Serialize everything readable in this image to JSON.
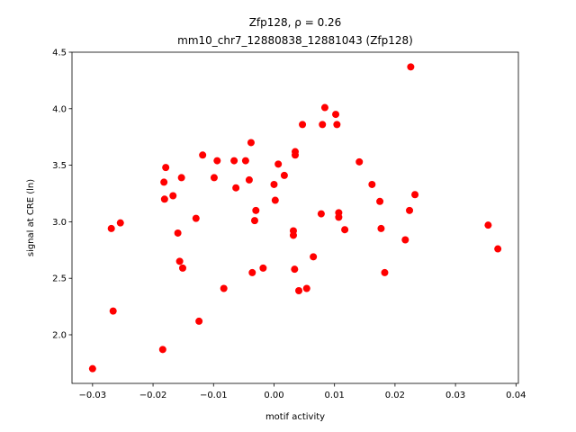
{
  "chart_data": {
    "type": "scatter",
    "title": "Zfp128, ρ = 0.26",
    "subtitle": "mm10_chr7_12880838_12881043 (Zfp128)",
    "x_label": "motif activity",
    "y_label": "signal at CRE (ln)",
    "color": "#ff0000",
    "xlim": [
      -0.0334,
      0.0404
    ],
    "ylim": [
      1.57,
      4.5
    ],
    "xticks": [
      {
        "value": -0.03,
        "label": "−0.03"
      },
      {
        "value": -0.02,
        "label": "−0.02"
      },
      {
        "value": -0.01,
        "label": "−0.01"
      },
      {
        "value": 0,
        "label": "0.00"
      },
      0.01,
      0.02,
      0.03,
      0.04
    ],
    "yticks": [
      {
        "value": 2,
        "label": "2.0"
      },
      2.5,
      {
        "value": 3,
        "label": "3.0"
      },
      3.5,
      {
        "value": 4,
        "label": "4.0"
      },
      4.5
    ],
    "x": [
      -0.03,
      -0.0269,
      -0.0254,
      -0.0266,
      -0.0184,
      -0.0179,
      -0.0182,
      -0.0181,
      -0.0167,
      -0.0159,
      -0.0156,
      -0.0151,
      -0.0153,
      -0.0129,
      -0.0124,
      -0.0118,
      -0.0099,
      -0.0094,
      -0.0083,
      -0.0066,
      -0.0063,
      -0.0047,
      -0.0041,
      -0.0038,
      -0.0036,
      -0.003,
      -0.0032,
      -0.0018,
      0.0,
      0.0002,
      0.0007,
      0.0017,
      0.0032,
      0.0032,
      0.0035,
      0.0035,
      0.0034,
      0.0041,
      0.0047,
      0.0054,
      0.0065,
      0.0078,
      0.008,
      0.0084,
      0.0102,
      0.0104,
      0.0107,
      0.0107,
      0.0117,
      0.0141,
      0.0162,
      0.0175,
      0.0177,
      0.0183,
      0.0217,
      0.0226,
      0.0224,
      0.0233,
      0.0354,
      0.037
    ],
    "values": [
      1.7,
      2.94,
      2.99,
      2.21,
      1.87,
      3.48,
      3.35,
      3.2,
      3.23,
      2.9,
      2.65,
      2.59,
      3.39,
      3.03,
      2.12,
      3.59,
      3.39,
      3.54,
      2.41,
      3.54,
      3.3,
      3.54,
      3.37,
      3.7,
      2.55,
      3.1,
      3.01,
      2.59,
      3.33,
      3.19,
      3.51,
      3.41,
      2.92,
      2.88,
      3.59,
      3.62,
      2.58,
      2.39,
      3.86,
      2.41,
      2.69,
      3.07,
      3.86,
      4.01,
      3.95,
      3.86,
      3.08,
      3.04,
      2.93,
      3.53,
      3.33,
      3.18,
      2.94,
      2.55,
      2.84,
      4.37,
      3.1,
      3.24,
      2.97,
      2.76
    ]
  }
}
